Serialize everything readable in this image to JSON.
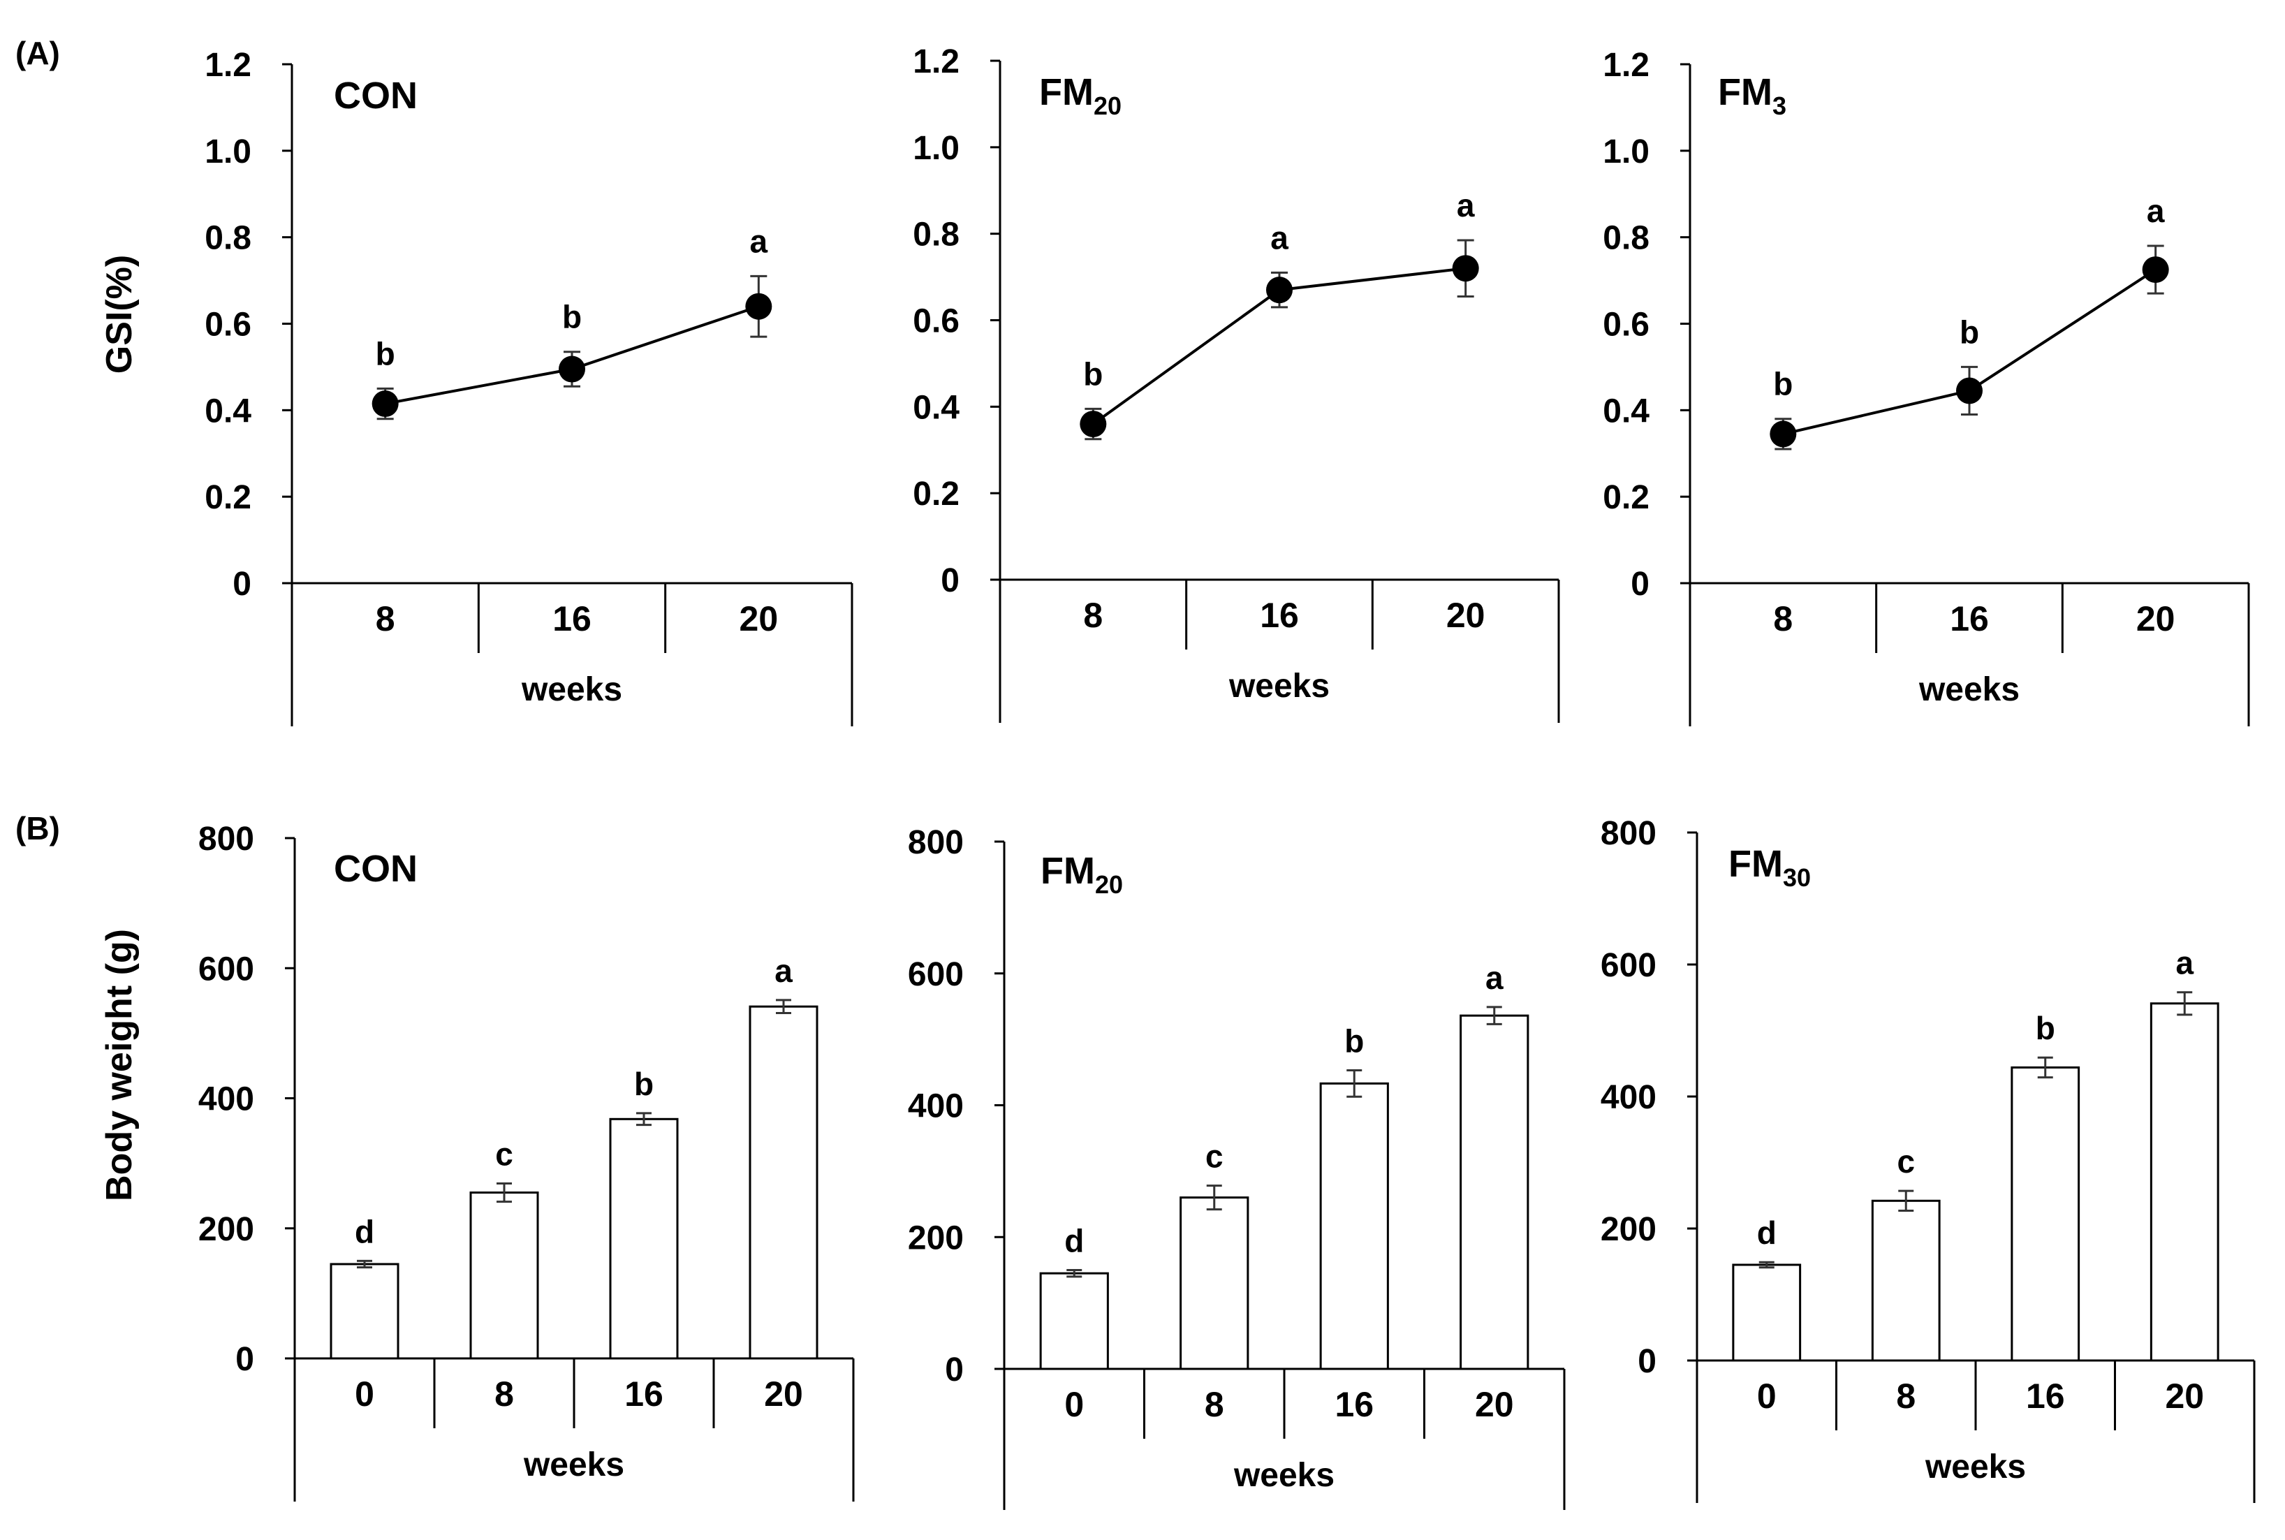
{
  "figure": {
    "panel_a_label": "(A)",
    "panel_b_label": "(B)",
    "row_a_ylabel": "GSI(%)",
    "row_b_ylabel": "Body weight (g)"
  },
  "colors": {
    "ink": "#000000",
    "bar_fill": "#ffffff",
    "marker": "#000000",
    "errorbar": "#333333"
  },
  "chart_data": [
    {
      "id": "a-con",
      "row": "A",
      "type": "line",
      "title": "CON",
      "title_subscript": "",
      "xlabel": "weeks",
      "ylabel": "GSI(%)",
      "categories": [
        "8",
        "16",
        "20"
      ],
      "values": [
        0.415,
        0.495,
        0.64
      ],
      "errors": [
        0.035,
        0.04,
        0.07
      ],
      "letters": [
        "b",
        "b",
        "a"
      ],
      "ylim": [
        0,
        1.2
      ],
      "yticks": [
        "0",
        "0.2",
        "0.4",
        "0.6",
        "0.8",
        "1.0",
        "1.2"
      ]
    },
    {
      "id": "a-fm20",
      "row": "A",
      "type": "line",
      "title": "FM",
      "title_subscript": "20",
      "xlabel": "weeks",
      "ylabel": "GSI(%)",
      "categories": [
        "8",
        "16",
        "20"
      ],
      "values": [
        0.36,
        0.67,
        0.72
      ],
      "errors": [
        0.035,
        0.04,
        0.065
      ],
      "letters": [
        "b",
        "a",
        "a"
      ],
      "ylim": [
        0,
        1.2
      ],
      "yticks": [
        "0",
        "0.2",
        "0.4",
        "0.6",
        "0.8",
        "1.0",
        "1.2"
      ]
    },
    {
      "id": "a-fm3",
      "row": "A",
      "type": "line",
      "title": "FM",
      "title_subscript": "3",
      "xlabel": "weeks",
      "ylabel": "GSI(%)",
      "categories": [
        "8",
        "16",
        "20"
      ],
      "values": [
        0.345,
        0.445,
        0.725
      ],
      "errors": [
        0.035,
        0.055,
        0.055
      ],
      "letters": [
        "b",
        "b",
        "a"
      ],
      "ylim": [
        0,
        1.2
      ],
      "yticks": [
        "0",
        "0.2",
        "0.4",
        "0.6",
        "0.8",
        "1.0",
        "1.2"
      ]
    },
    {
      "id": "b-con",
      "row": "B",
      "type": "bar",
      "title": "CON",
      "title_subscript": "",
      "xlabel": "weeks",
      "ylabel": "Body weight (g)",
      "categories": [
        "0",
        "8",
        "16",
        "20"
      ],
      "values": [
        145,
        255,
        368,
        541
      ],
      "errors": [
        5,
        14,
        9,
        10
      ],
      "letters": [
        "d",
        "c",
        "b",
        "a"
      ],
      "ylim": [
        0,
        800
      ],
      "yticks": [
        "0",
        "200",
        "400",
        "600",
        "800"
      ]
    },
    {
      "id": "b-fm20",
      "row": "B",
      "type": "bar",
      "title": "FM",
      "title_subscript": "20",
      "xlabel": "weeks",
      "ylabel": "Body weight (g)",
      "categories": [
        "0",
        "8",
        "16",
        "20"
      ],
      "values": [
        145,
        260,
        433,
        536
      ],
      "errors": [
        5,
        18,
        20,
        13
      ],
      "letters": [
        "d",
        "c",
        "b",
        "a"
      ],
      "ylim": [
        0,
        800
      ],
      "yticks": [
        "0",
        "200",
        "400",
        "600",
        "800"
      ]
    },
    {
      "id": "b-fm30",
      "row": "B",
      "type": "bar",
      "title": "FM",
      "title_subscript": "30",
      "xlabel": "weeks",
      "ylabel": "Body weight (g)",
      "categories": [
        "0",
        "8",
        "16",
        "20"
      ],
      "values": [
        145,
        242,
        444,
        541
      ],
      "errors": [
        4,
        15,
        15,
        17
      ],
      "letters": [
        "d",
        "c",
        "b",
        "a"
      ],
      "ylim": [
        0,
        800
      ],
      "yticks": [
        "0",
        "200",
        "400",
        "600",
        "800"
      ]
    }
  ]
}
